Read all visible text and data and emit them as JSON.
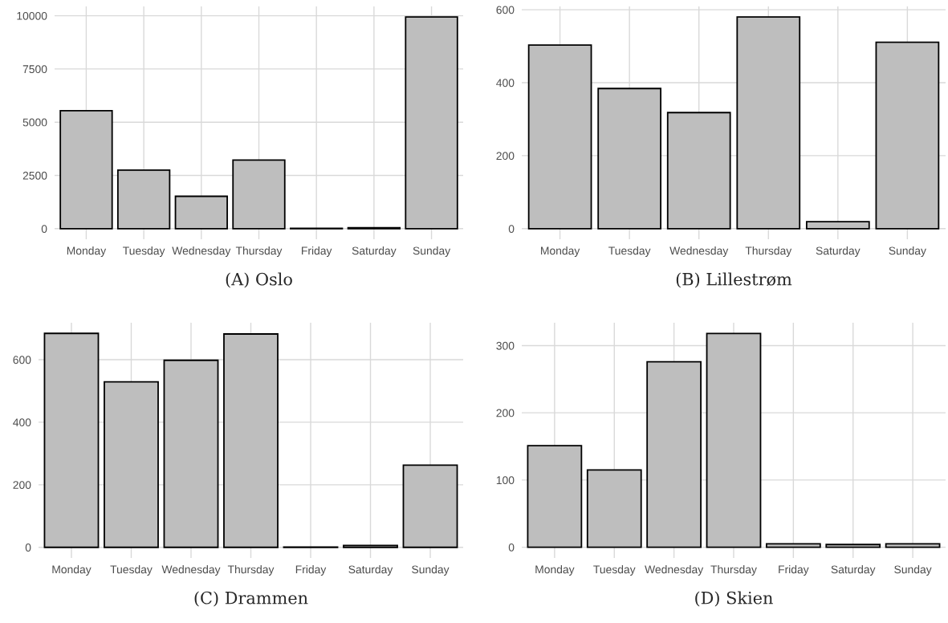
{
  "chart_data": [
    {
      "type": "bar",
      "title": "(A) Oslo",
      "categories": [
        "Monday",
        "Tuesday",
        "Wednesday",
        "Thursday",
        "Friday",
        "Saturday",
        "Sunday"
      ],
      "values": [
        5540,
        2750,
        1520,
        3220,
        20,
        40,
        9940
      ],
      "color": "#bebebe",
      "ylim": [
        -497,
        10437
      ],
      "yticks": [
        0,
        2500,
        5000,
        7500,
        10000
      ],
      "grid": true
    },
    {
      "type": "bar",
      "title": "(B) Lillestrøm",
      "categories": [
        "Monday",
        "Tuesday",
        "Wednesday",
        "Thursday",
        "Saturday",
        "Sunday"
      ],
      "values": [
        503,
        384,
        318,
        580,
        19,
        511
      ],
      "color": "#bebebe",
      "ylim": [
        -29,
        609
      ],
      "yticks": [
        0,
        200,
        400,
        600
      ],
      "grid": true
    },
    {
      "type": "bar",
      "title": "(C) Drammen",
      "categories": [
        "Monday",
        "Tuesday",
        "Wednesday",
        "Thursday",
        "Friday",
        "Saturday",
        "Sunday"
      ],
      "values": [
        684,
        529,
        598,
        682,
        1,
        6,
        263
      ],
      "color": "#bebebe",
      "ylim": [
        -34,
        718
      ],
      "yticks": [
        0,
        200,
        400,
        600
      ],
      "grid": true
    },
    {
      "type": "bar",
      "title": "(D) Skien",
      "categories": [
        "Monday",
        "Tuesday",
        "Wednesday",
        "Thursday",
        "Friday",
        "Saturday",
        "Sunday"
      ],
      "values": [
        151,
        115,
        276,
        318,
        5,
        4,
        5
      ],
      "color": "#bebebe",
      "ylim": [
        -16,
        334
      ],
      "yticks": [
        0,
        100,
        200,
        300
      ],
      "grid": true
    }
  ]
}
